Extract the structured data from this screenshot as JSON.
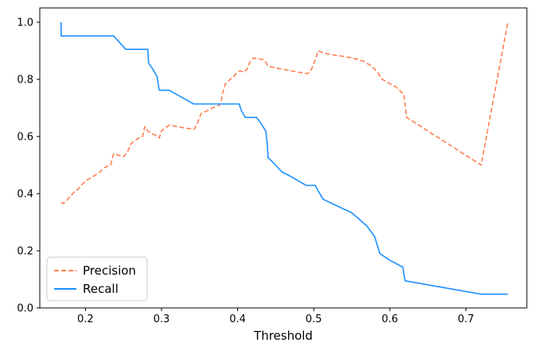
{
  "chart_data": {
    "type": "line",
    "title": "",
    "xlabel": "Threshold",
    "ylabel": "",
    "xlim": [
      0.14,
      0.78
    ],
    "ylim": [
      0.0,
      1.05
    ],
    "xticks": [
      0.2,
      0.3,
      0.4,
      0.5,
      0.6,
      0.7
    ],
    "xtick_labels": [
      "0.2",
      "0.3",
      "0.4",
      "0.5",
      "0.6",
      "0.7"
    ],
    "yticks": [
      0.0,
      0.2,
      0.4,
      0.6,
      0.8,
      1.0
    ],
    "ytick_labels": [
      "0.0",
      "0.2",
      "0.4",
      "0.6",
      "0.8",
      "1.0"
    ],
    "grid": false,
    "legend_position": "lower-left",
    "series": [
      {
        "name": "Precision",
        "color": "#ff7f50",
        "style": "dashed",
        "x": [
          0.168,
          0.171,
          0.175,
          0.18,
          0.185,
          0.19,
          0.195,
          0.2,
          0.207,
          0.213,
          0.22,
          0.224,
          0.23,
          0.233,
          0.237,
          0.243,
          0.25,
          0.255,
          0.26,
          0.265,
          0.27,
          0.275,
          0.278,
          0.282,
          0.287,
          0.292,
          0.297,
          0.3,
          0.305,
          0.31,
          0.32,
          0.33,
          0.343,
          0.347,
          0.352,
          0.36,
          0.367,
          0.372,
          0.376,
          0.378,
          0.38,
          0.384,
          0.387,
          0.39,
          0.395,
          0.398,
          0.403,
          0.408,
          0.412,
          0.416,
          0.421,
          0.427,
          0.432,
          0.436,
          0.439,
          0.442,
          0.45,
          0.46,
          0.47,
          0.48,
          0.492,
          0.497,
          0.502,
          0.506,
          0.512,
          0.52,
          0.53,
          0.54,
          0.55,
          0.558,
          0.565,
          0.57,
          0.575,
          0.58,
          0.585,
          0.59,
          0.6,
          0.607,
          0.612,
          0.615,
          0.618,
          0.622,
          0.72,
          0.755
        ],
        "y": [
          0.37,
          0.365,
          0.375,
          0.39,
          0.405,
          0.415,
          0.43,
          0.445,
          0.455,
          0.465,
          0.478,
          0.49,
          0.497,
          0.5,
          0.54,
          0.535,
          0.53,
          0.545,
          0.575,
          0.585,
          0.595,
          0.6,
          0.635,
          0.62,
          0.61,
          0.605,
          0.595,
          0.62,
          0.63,
          0.64,
          0.635,
          0.63,
          0.625,
          0.645,
          0.68,
          0.69,
          0.7,
          0.705,
          0.71,
          0.715,
          0.75,
          0.785,
          0.79,
          0.8,
          0.81,
          0.82,
          0.83,
          0.825,
          0.835,
          0.86,
          0.875,
          0.872,
          0.87,
          0.865,
          0.85,
          0.845,
          0.84,
          0.835,
          0.83,
          0.825,
          0.82,
          0.835,
          0.87,
          0.9,
          0.893,
          0.888,
          0.884,
          0.88,
          0.875,
          0.87,
          0.864,
          0.856,
          0.848,
          0.836,
          0.82,
          0.8,
          0.785,
          0.775,
          0.765,
          0.755,
          0.75,
          0.667,
          0.5,
          1.0
        ]
      },
      {
        "name": "Recall",
        "color": "#1e90ff",
        "style": "solid",
        "x": [
          0.168,
          0.168,
          0.17,
          0.2,
          0.237,
          0.253,
          0.28,
          0.282,
          0.283,
          0.288,
          0.294,
          0.297,
          0.3,
          0.31,
          0.342,
          0.35,
          0.37,
          0.402,
          0.405,
          0.41,
          0.425,
          0.43,
          0.437,
          0.439,
          0.44,
          0.441,
          0.45,
          0.458,
          0.47,
          0.49,
          0.502,
          0.505,
          0.512,
          0.53,
          0.55,
          0.56,
          0.57,
          0.58,
          0.587,
          0.6,
          0.617,
          0.62,
          0.72,
          0.755
        ],
        "y": [
          1.0,
          0.952,
          0.952,
          0.952,
          0.952,
          0.905,
          0.905,
          0.905,
          0.857,
          0.838,
          0.81,
          0.762,
          0.762,
          0.762,
          0.714,
          0.714,
          0.714,
          0.714,
          0.69,
          0.667,
          0.667,
          0.648,
          0.619,
          0.571,
          0.524,
          0.524,
          0.5,
          0.476,
          0.46,
          0.429,
          0.429,
          0.414,
          0.381,
          0.358,
          0.333,
          0.31,
          0.286,
          0.25,
          0.19,
          0.167,
          0.143,
          0.095,
          0.048,
          0.048
        ]
      }
    ]
  }
}
